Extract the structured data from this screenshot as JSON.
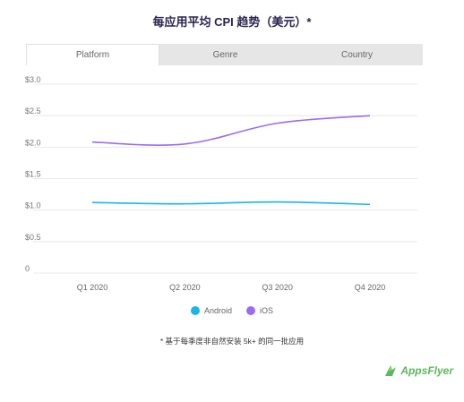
{
  "title": "每应用平均 CPI 趋势（美元）*",
  "tabs": [
    {
      "label": "Platform",
      "active": true
    },
    {
      "label": "Genre",
      "active": false
    },
    {
      "label": "Country",
      "active": false
    }
  ],
  "chart_data": {
    "type": "line",
    "categories": [
      "Q1 2020",
      "Q2 2020",
      "Q3 2020",
      "Q4 2020"
    ],
    "y_ticks": [
      "$3.0",
      "$2.5",
      "$2.0",
      "$1.5",
      "$1.0",
      "$0.5",
      "0"
    ],
    "ylim": [
      0,
      3.0
    ],
    "grid": true,
    "legend_position": "bottom",
    "series": [
      {
        "name": "Android",
        "color": "#1ab4e6",
        "values": [
          1.12,
          1.1,
          1.13,
          1.09
        ]
      },
      {
        "name": "iOS",
        "color": "#9b6cf0",
        "values": [
          2.08,
          2.05,
          2.38,
          2.5
        ]
      }
    ]
  },
  "footnote": "* 基于每季度非自然安装 5k+ 的同一批应用",
  "logo": {
    "text": "AppsFlyer",
    "icon": "appsflyer-logo-icon"
  }
}
